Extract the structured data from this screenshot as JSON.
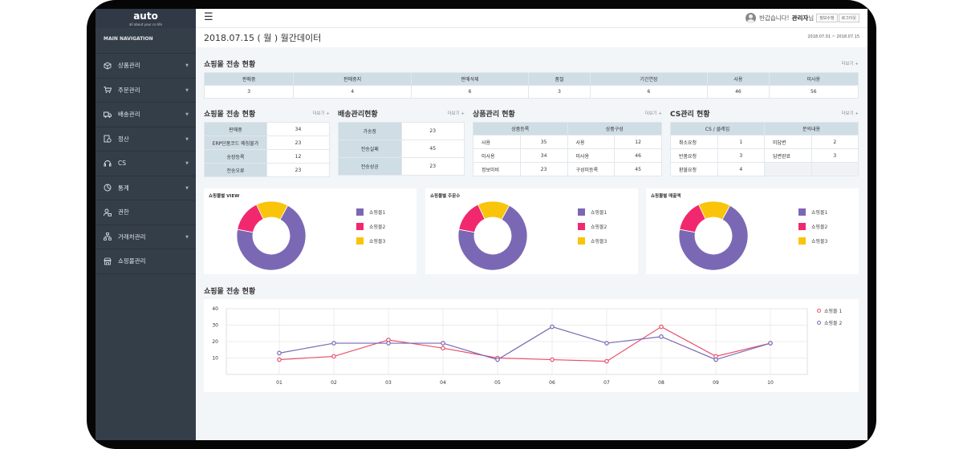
{
  "app": {
    "logo": "auto",
    "logo_sub": "all about your co life"
  },
  "sidebar": {
    "heading": "MAIN NAVIGATION",
    "items": [
      {
        "label": "상품관리",
        "icon": "cube-icon",
        "chev": true
      },
      {
        "label": "주문관리",
        "icon": "cart-icon",
        "chev": true
      },
      {
        "label": "배송관리",
        "icon": "truck-icon",
        "chev": true
      },
      {
        "label": "정산",
        "icon": "calc-icon",
        "chev": true
      },
      {
        "label": "CS",
        "icon": "headset-icon",
        "chev": true
      },
      {
        "label": "통계",
        "icon": "pie-icon",
        "chev": true
      },
      {
        "label": "권한",
        "icon": "user-lock-icon",
        "chev": false
      },
      {
        "label": "거래처관리",
        "icon": "sitemap-icon",
        "chev": true
      },
      {
        "label": "쇼핑몰관리",
        "icon": "store-icon",
        "chev": false
      }
    ]
  },
  "topbar": {
    "greeting": "반갑습니다!",
    "user": "관리자",
    "suffix": "님",
    "profile_btn": "정보수정",
    "logout_btn": "로그아웃"
  },
  "page": {
    "title": "2018.07.15 ( 월 )  월간데이터",
    "range": "2018.07.01 ~ 2018.07.15"
  },
  "more_label": "더보기 +",
  "summary": {
    "title": "쇼핑몰 전송 현황",
    "headers": [
      "판매중",
      "판매중지",
      "판매삭제",
      "품절",
      "기간연장",
      "사용",
      "미사용"
    ],
    "values": [
      "3",
      "4",
      "6",
      "3",
      "6",
      "46",
      "56"
    ]
  },
  "panel1": {
    "title": "쇼핑몰 전송 현황",
    "rows": [
      [
        "판매중",
        "34"
      ],
      [
        "ERP단품코드 매칭불가",
        "23"
      ],
      [
        "송장등록",
        "12"
      ],
      [
        "전송오류",
        "23"
      ]
    ]
  },
  "panel2": {
    "title": "배송관리현황",
    "rows": [
      [
        "가송장",
        "23"
      ],
      [
        "전송실패",
        "45"
      ],
      [
        "전송성공",
        "23"
      ]
    ]
  },
  "panel3": {
    "title": "상품관리 현황",
    "headers": [
      "상품등록",
      "상품구성"
    ],
    "rows": [
      [
        "사용",
        "35",
        "사용",
        "12"
      ],
      [
        "미사용",
        "34",
        "미사용",
        "46"
      ],
      [
        "정보미비",
        "23",
        "구성미등록",
        "45"
      ]
    ]
  },
  "panel4": {
    "title": "CS관리 현황",
    "headers": [
      "CS / 클레임",
      "문의내용"
    ],
    "rows": [
      [
        "취소요청",
        "1",
        "미답변",
        "2"
      ],
      [
        "반품요청",
        "3",
        "답변완료",
        "3"
      ],
      [
        "환불요청",
        "4",
        "",
        ""
      ]
    ]
  },
  "donuts": [
    {
      "title": "쇼핑몰별 VIEW"
    },
    {
      "title": "쇼핑몰별 주문수"
    },
    {
      "title": "쇼핑몰별 매출액"
    }
  ],
  "donut_legend": [
    {
      "name": "쇼핑몰1",
      "color": "#7b68b5"
    },
    {
      "name": "쇼핑몰2",
      "color": "#f2286e"
    },
    {
      "name": "쇼핑몰3",
      "color": "#f9c40a"
    }
  ],
  "line_section": {
    "title": "쇼핑몰 전송 현황"
  },
  "chart_data": [
    {
      "type": "pie",
      "categories": [
        "쇼핑몰1",
        "쇼핑몰2",
        "쇼핑몰3"
      ],
      "values": [
        70,
        15,
        15
      ],
      "title": "쇼핑몰별 VIEW"
    },
    {
      "type": "pie",
      "categories": [
        "쇼핑몰1",
        "쇼핑몰2",
        "쇼핑몰3"
      ],
      "values": [
        70,
        15,
        15
      ],
      "title": "쇼핑몰별 주문수"
    },
    {
      "type": "pie",
      "categories": [
        "쇼핑몰1",
        "쇼핑몰2",
        "쇼핑몰3"
      ],
      "values": [
        70,
        15,
        15
      ],
      "title": "쇼핑몰별 매출액"
    },
    {
      "type": "line",
      "categories": [
        "01",
        "02",
        "03",
        "04",
        "05",
        "06",
        "07",
        "08",
        "09",
        "10"
      ],
      "series": [
        {
          "name": "쇼핑몰 1",
          "color": "#e8506a",
          "values": [
            9,
            11,
            21,
            16,
            10,
            9,
            8,
            29,
            11,
            19
          ]
        },
        {
          "name": "쇼핑몰 2",
          "color": "#7b68b5",
          "values": [
            13,
            19,
            19,
            19,
            9,
            29,
            19,
            23,
            9,
            19
          ]
        }
      ],
      "yticks": [
        10,
        20,
        30,
        40
      ],
      "ylim": [
        0,
        40
      ],
      "grid": true,
      "legend": "top-right"
    }
  ]
}
